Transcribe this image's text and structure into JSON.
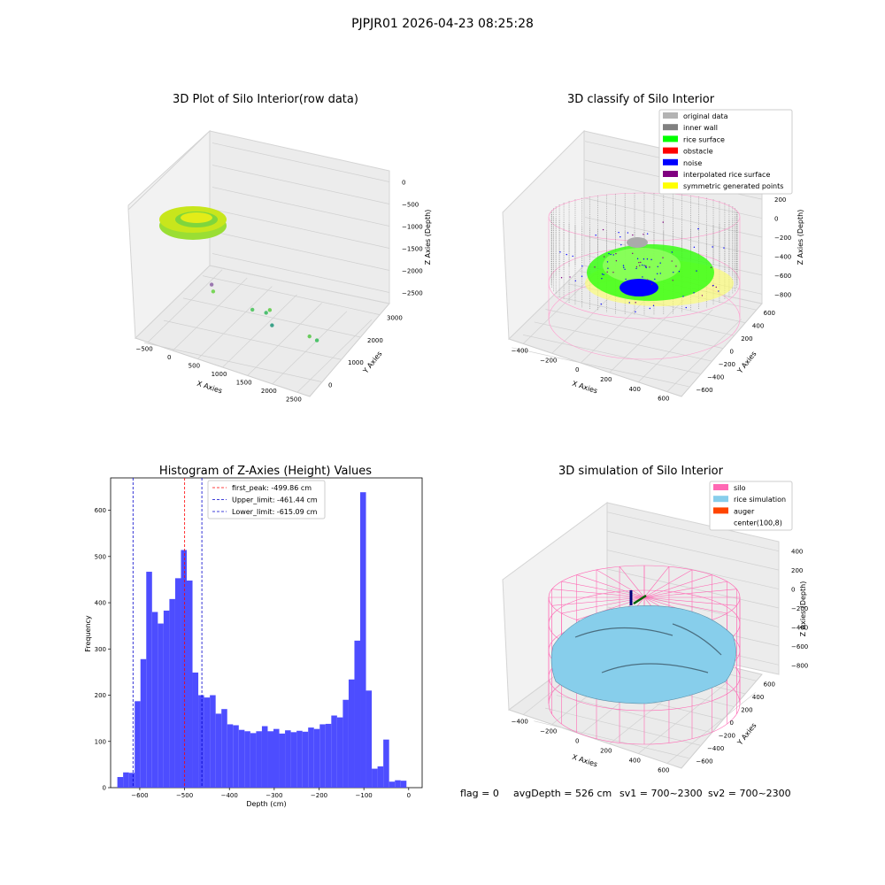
{
  "suptitle": "PJPJR01 2026-04-23 08:25:28",
  "footer": {
    "flag": "flag = 0",
    "avg_depth": "avgDepth = 526 cm",
    "sv1": "sv1 = 700~2300",
    "sv2": "sv2 = 700~2300"
  },
  "colors": {
    "hist_bar": "#4d4dff",
    "peak_line": "#ff0000",
    "limit_line": "#0000cc",
    "original": "#b3b3b3",
    "inner_wall": "#808080",
    "rice_surface": "#00ff00",
    "obstacle": "#ff0000",
    "noise": "#0000ff",
    "interpolated": "#800080",
    "symmetric": "#ffff00",
    "silo": "#ff69b4",
    "rice_sim": "#87ceeb",
    "auger": "#ff4500"
  },
  "chart_data": [
    {
      "type": "scatter",
      "title": "3D Plot of Silo Interior(row data)",
      "xlabel": "X Axies",
      "ylabel": "Y Axies",
      "zlabel": "Z Axies (Depth)",
      "x_ticks": [
        "−500",
        "0",
        "500",
        "1000",
        "1500",
        "2000",
        "2500"
      ],
      "y_ticks": [
        "0",
        "1000",
        "2000",
        "3000"
      ],
      "z_ticks": [
        "0",
        "−500",
        "−1000",
        "−1500",
        "−2000",
        "−2500"
      ],
      "outliers": [
        {
          "x": 1250,
          "y": 600,
          "z": -1900
        },
        {
          "x": 1550,
          "y": 500,
          "z": -1800
        },
        {
          "x": 1600,
          "y": 550,
          "z": -1750
        },
        {
          "x": 1500,
          "y": 900,
          "z": -2300
        },
        {
          "x": 2250,
          "y": 800,
          "z": -2200
        },
        {
          "x": 2350,
          "y": 900,
          "z": -2300
        },
        {
          "x": 600,
          "y": 300,
          "z": -1450
        },
        {
          "x": 650,
          "y": 250,
          "z": -1550
        }
      ]
    },
    {
      "type": "scatter",
      "title": "3D classify of Silo Interior",
      "xlabel": "X Axies",
      "ylabel": "Y Axies",
      "zlabel": "Z Axies (Depth)",
      "x_ticks": [
        "−400",
        "−200",
        "0",
        "200",
        "400",
        "600"
      ],
      "y_ticks": [
        "−600",
        "−400",
        "−200",
        "0",
        "200",
        "400",
        "600"
      ],
      "z_ticks": [
        "400",
        "200",
        "0",
        "−200",
        "−400",
        "−600",
        "−800"
      ],
      "legend": [
        "original data",
        "inner wall",
        "rice surface",
        "obstacle",
        "noise",
        "interpolated rice surface",
        "symmetric generated points"
      ],
      "legend_loc": "upper right"
    },
    {
      "type": "bar",
      "title": "Histogram of Z-Axies (Height) Values",
      "xlabel": "Depth (cm)",
      "ylabel": "Frequency",
      "xlim": [
        -665,
        30
      ],
      "ylim": [
        0,
        670
      ],
      "x_ticks": [
        -600,
        -500,
        -400,
        -300,
        -200,
        -100,
        0
      ],
      "y_ticks": [
        0,
        100,
        200,
        300,
        400,
        500,
        600
      ],
      "bin_start": -650,
      "bin_width": 12.9,
      "values": [
        23,
        33,
        32,
        187,
        278,
        467,
        380,
        355,
        383,
        408,
        453,
        514,
        448,
        249,
        200,
        195,
        200,
        160,
        170,
        137,
        135,
        125,
        122,
        118,
        122,
        133,
        122,
        127,
        117,
        124,
        120,
        123,
        121,
        130,
        127,
        137,
        138,
        156,
        152,
        190,
        234,
        318,
        639,
        210,
        41,
        46,
        104,
        13,
        16,
        15
      ],
      "vlines": [
        {
          "label": "first_peak: -499.86 cm",
          "x": -499.86,
          "color": "#ff0000"
        },
        {
          "label": "Upper_limit: -461.44 cm",
          "x": -461.44,
          "color": "#0000cc"
        },
        {
          "label": "Lower_limit: -615.09 cm",
          "x": -615.09,
          "color": "#0000cc"
        }
      ],
      "legend_loc": "upper center"
    },
    {
      "type": "scatter",
      "title": "3D simulation of Silo Interior",
      "xlabel": "X Axies",
      "ylabel": "Y Axies",
      "zlabel": "Z Axies (Depth)",
      "x_ticks": [
        "−400",
        "−200",
        "0",
        "200",
        "400",
        "600"
      ],
      "y_ticks": [
        "−600",
        "−400",
        "−200",
        "0",
        "200",
        "400",
        "600"
      ],
      "z_ticks": [
        "400",
        "200",
        "0",
        "−200",
        "−400",
        "−600",
        "−800"
      ],
      "legend": [
        "silo",
        "rice simulation",
        "auger",
        "center(100,8)"
      ],
      "legend_loc": "upper right"
    }
  ]
}
